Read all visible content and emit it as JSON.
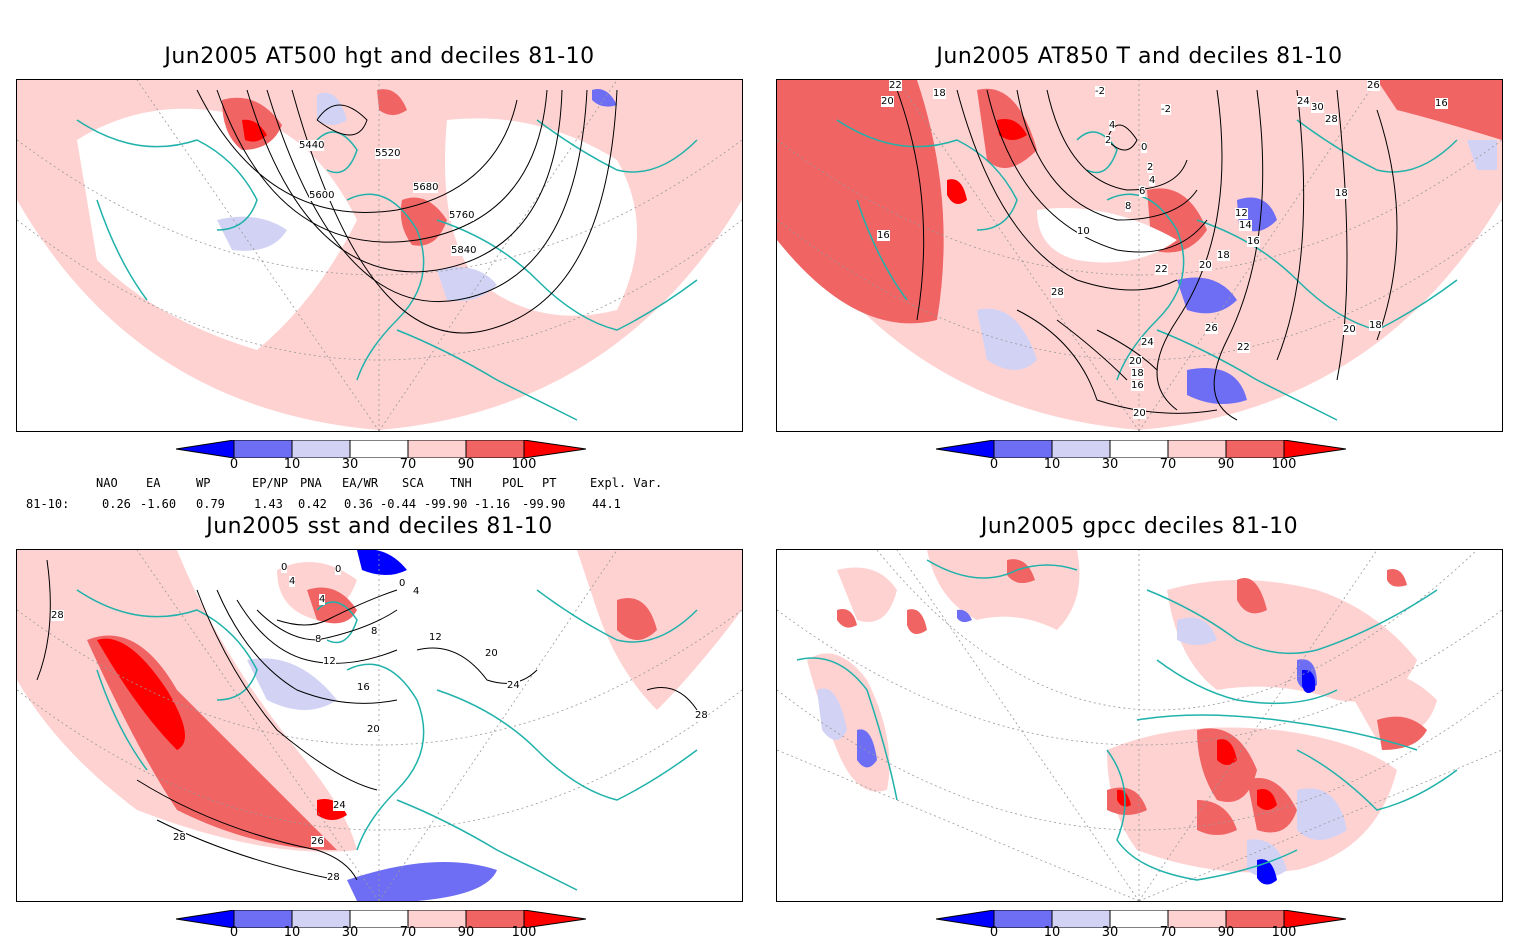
{
  "panels": [
    {
      "id": "p1",
      "title": "Jun2005 AT500 hgt and deciles 81-10",
      "contour_labels": [
        "5440",
        "5520",
        "5600",
        "5680",
        "5760",
        "5840"
      ]
    },
    {
      "id": "p2",
      "title": "Jun2005 AT850 T and deciles 81-10",
      "contour_labels": [
        "22",
        "20",
        "18",
        "-2",
        "4",
        "2",
        "-2",
        "0",
        "2",
        "4",
        "6",
        "8",
        "10",
        "12",
        "14",
        "16",
        "18",
        "20",
        "22",
        "24",
        "26",
        "28",
        "30",
        "18",
        "16",
        "16",
        "28",
        "26",
        "24",
        "22",
        "20",
        "18",
        "16",
        "20",
        "20",
        "18"
      ]
    },
    {
      "id": "p3",
      "title": "Jun2005 sst and deciles 81-10",
      "contour_labels": [
        "28",
        "0",
        "0",
        "0",
        "4",
        "4",
        "4",
        "8",
        "8",
        "12",
        "12",
        "16",
        "20",
        "24",
        "20",
        "24",
        "26",
        "28",
        "28",
        "28"
      ]
    },
    {
      "id": "p4",
      "title": "Jun2005 gpcc deciles 81-10",
      "contour_labels": []
    }
  ],
  "colorbar": {
    "ticks": [
      "0",
      "10",
      "30",
      "70",
      "90",
      "100"
    ],
    "colors": [
      "#0000ff",
      "#6e6ef5",
      "#d2d2f5",
      "#ffffff",
      "#ffd2d2",
      "#f06464",
      "#ff0000"
    ]
  },
  "teleconnections": {
    "row_label": "81-10:",
    "headers": [
      "NAO",
      "EA",
      "WP",
      "EP/NP",
      "PNA",
      "EA/WR",
      "SCA",
      "TNH",
      "POL",
      "PT",
      "Expl. Var."
    ],
    "values": [
      "0.26",
      "-1.60",
      "0.79",
      "1.43",
      "0.42",
      "0.36",
      "-0.44",
      "-99.90",
      "-1.16",
      "-99.90",
      "44.1"
    ]
  }
}
